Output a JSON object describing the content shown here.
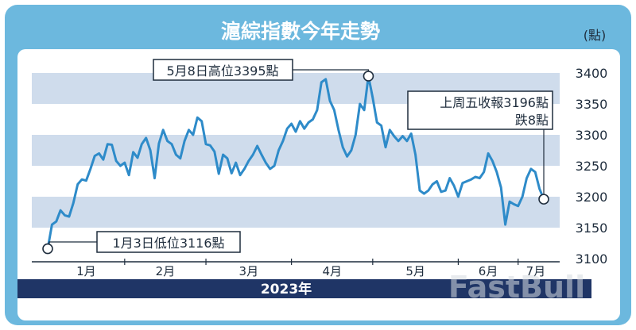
{
  "title": "滬綜指數今年走勢",
  "unit": "(點)",
  "year_label": "2023年",
  "watermark": "FastBull",
  "colors": {
    "frame": "#6cb8de",
    "band": "#cfdcec",
    "line": "#2e8bc9",
    "year_bar": "#1f3566"
  },
  "annotations": {
    "high": "5月8日高位3395點",
    "low": "1月3日低位3116點",
    "last_line1": "上周五收報3196點",
    "last_line2": "跌8點"
  },
  "chart_data": {
    "type": "line",
    "title": "滬綜指數今年走勢",
    "ylabel": "(點)",
    "xlabel": "2023年",
    "ylim": [
      3100,
      3400
    ],
    "yticks": [
      3100,
      3150,
      3200,
      3250,
      3300,
      3350,
      3400
    ],
    "months": [
      "1月",
      "2月",
      "3月",
      "4月",
      "5月",
      "6月",
      "7月"
    ],
    "month_ticks": [
      0,
      18,
      37,
      57,
      76,
      96,
      110
    ],
    "grid": "alternating horizontal bands",
    "series": [
      {
        "values": [
          3116,
          3155,
          3160,
          3178,
          3170,
          3168,
          3190,
          3220,
          3228,
          3226,
          3245,
          3266,
          3270,
          3260,
          3285,
          3284,
          3258,
          3250,
          3255,
          3235,
          3272,
          3263,
          3285,
          3295,
          3275,
          3230,
          3286,
          3308,
          3290,
          3285,
          3268,
          3262,
          3290,
          3308,
          3300,
          3328,
          3322,
          3285,
          3283,
          3273,
          3237,
          3268,
          3262,
          3238,
          3255,
          3235,
          3245,
          3258,
          3268,
          3282,
          3268,
          3255,
          3245,
          3250,
          3275,
          3290,
          3310,
          3318,
          3305,
          3322,
          3310,
          3320,
          3325,
          3340,
          3385,
          3390,
          3355,
          3340,
          3308,
          3280,
          3265,
          3275,
          3300,
          3350,
          3340,
          3395,
          3360,
          3320,
          3315,
          3280,
          3308,
          3298,
          3290,
          3298,
          3290,
          3302,
          3268,
          3210,
          3205,
          3210,
          3220,
          3225,
          3208,
          3210,
          3230,
          3218,
          3200,
          3222,
          3225,
          3228,
          3232,
          3230,
          3240,
          3270,
          3258,
          3240,
          3215,
          3155,
          3192,
          3188,
          3185,
          3200,
          3230,
          3245,
          3240,
          3213,
          3196
        ]
      }
    ]
  }
}
